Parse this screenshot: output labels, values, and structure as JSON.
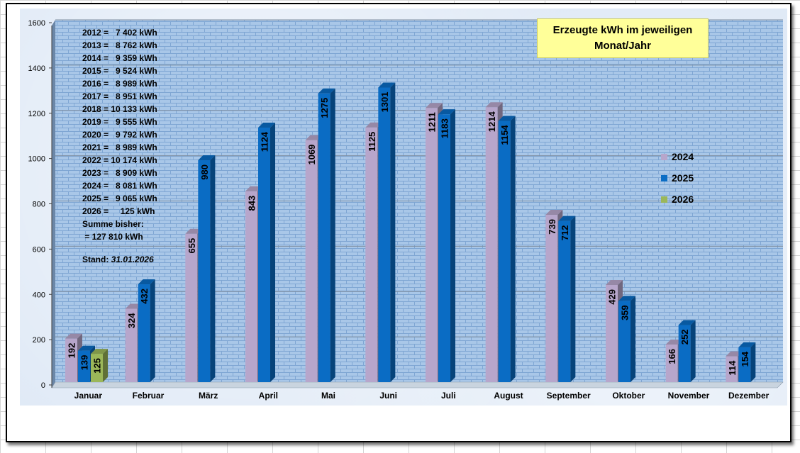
{
  "chart_data": {
    "type": "bar",
    "title_lines": [
      "Erzeugte kWh im jeweiligen",
      "Monat/Jahr"
    ],
    "categories": [
      "Januar",
      "Februar",
      "März",
      "April",
      "Mai",
      "Juni",
      "Juli",
      "August",
      "September",
      "Oktober",
      "November",
      "Dezember"
    ],
    "series": [
      {
        "name": "2024",
        "color": "#b7a6cb",
        "values": [
          192,
          324,
          655,
          843,
          1069,
          1125,
          1211,
          1214,
          739,
          429,
          166,
          114
        ]
      },
      {
        "name": "2025",
        "color": "#0a6cc4",
        "values": [
          139,
          432,
          980,
          1124,
          1275,
          1301,
          1183,
          1154,
          712,
          359,
          252,
          154
        ]
      },
      {
        "name": "2026",
        "color": "#9bb759",
        "values": [
          125,
          null,
          null,
          null,
          null,
          null,
          null,
          null,
          null,
          null,
          null,
          null
        ]
      }
    ],
    "ylim": [
      0,
      1600
    ],
    "yticks": [
      0,
      200,
      400,
      600,
      800,
      1000,
      1200,
      1400,
      1600
    ],
    "grid": true,
    "legend_position": "right"
  },
  "notes": {
    "year_totals": [
      "2012 =   7 402 kWh",
      "2013 =   8 762 kWh",
      "2014 =   9 359 kWh",
      "2015 =   9 524 kWh",
      "2016 =   8 989 kWh",
      "2017 =   8 951 kWh",
      "2018 = 10 133 kWh",
      "2019 =   9 555 kWh",
      "2020 =   9 792 kWh",
      "2021 =   8 989 kWh",
      "2022 = 10 174 kWh",
      "2023 =   8 909 kWh",
      "2024 =   8 081 kWh",
      "2025 =   9 065 kWh",
      "2026 =     125 kWh"
    ],
    "sum_label": "Summe bisher:",
    "sum_value": " = 127 810 kWh",
    "stand_label": "Stand: ",
    "stand_date": "31.01.2026"
  }
}
